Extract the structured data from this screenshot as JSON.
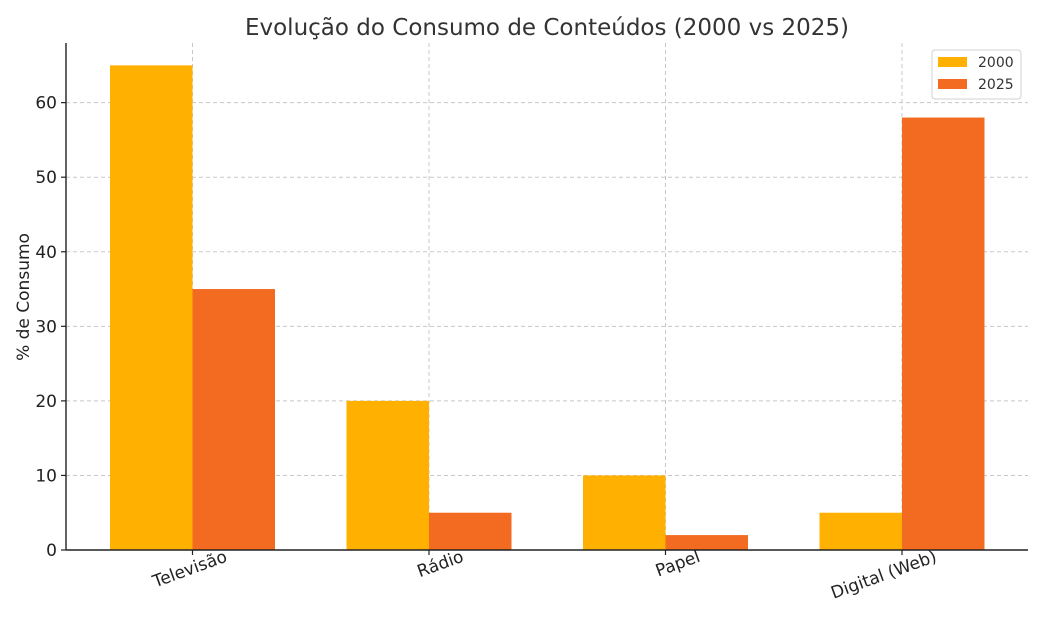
{
  "chart_data": {
    "type": "bar",
    "title": "Evolução do Consumo de Conteúdos (2000 vs 2025)",
    "xlabel": "",
    "ylabel": "% de Consumo",
    "categories": [
      "Televisão",
      "Rádio",
      "Papel",
      "Digital (Web)"
    ],
    "series": [
      {
        "name": "2000",
        "values": [
          65,
          20,
          10,
          5
        ],
        "color": "#FFB000"
      },
      {
        "name": "2025",
        "values": [
          35,
          5,
          2,
          58
        ],
        "color": "#F26B21"
      }
    ],
    "ylim": [
      0,
      68
    ],
    "yticks": [
      0,
      10,
      20,
      30,
      40,
      50,
      60
    ],
    "grid": true,
    "legend_position": "top-right"
  }
}
